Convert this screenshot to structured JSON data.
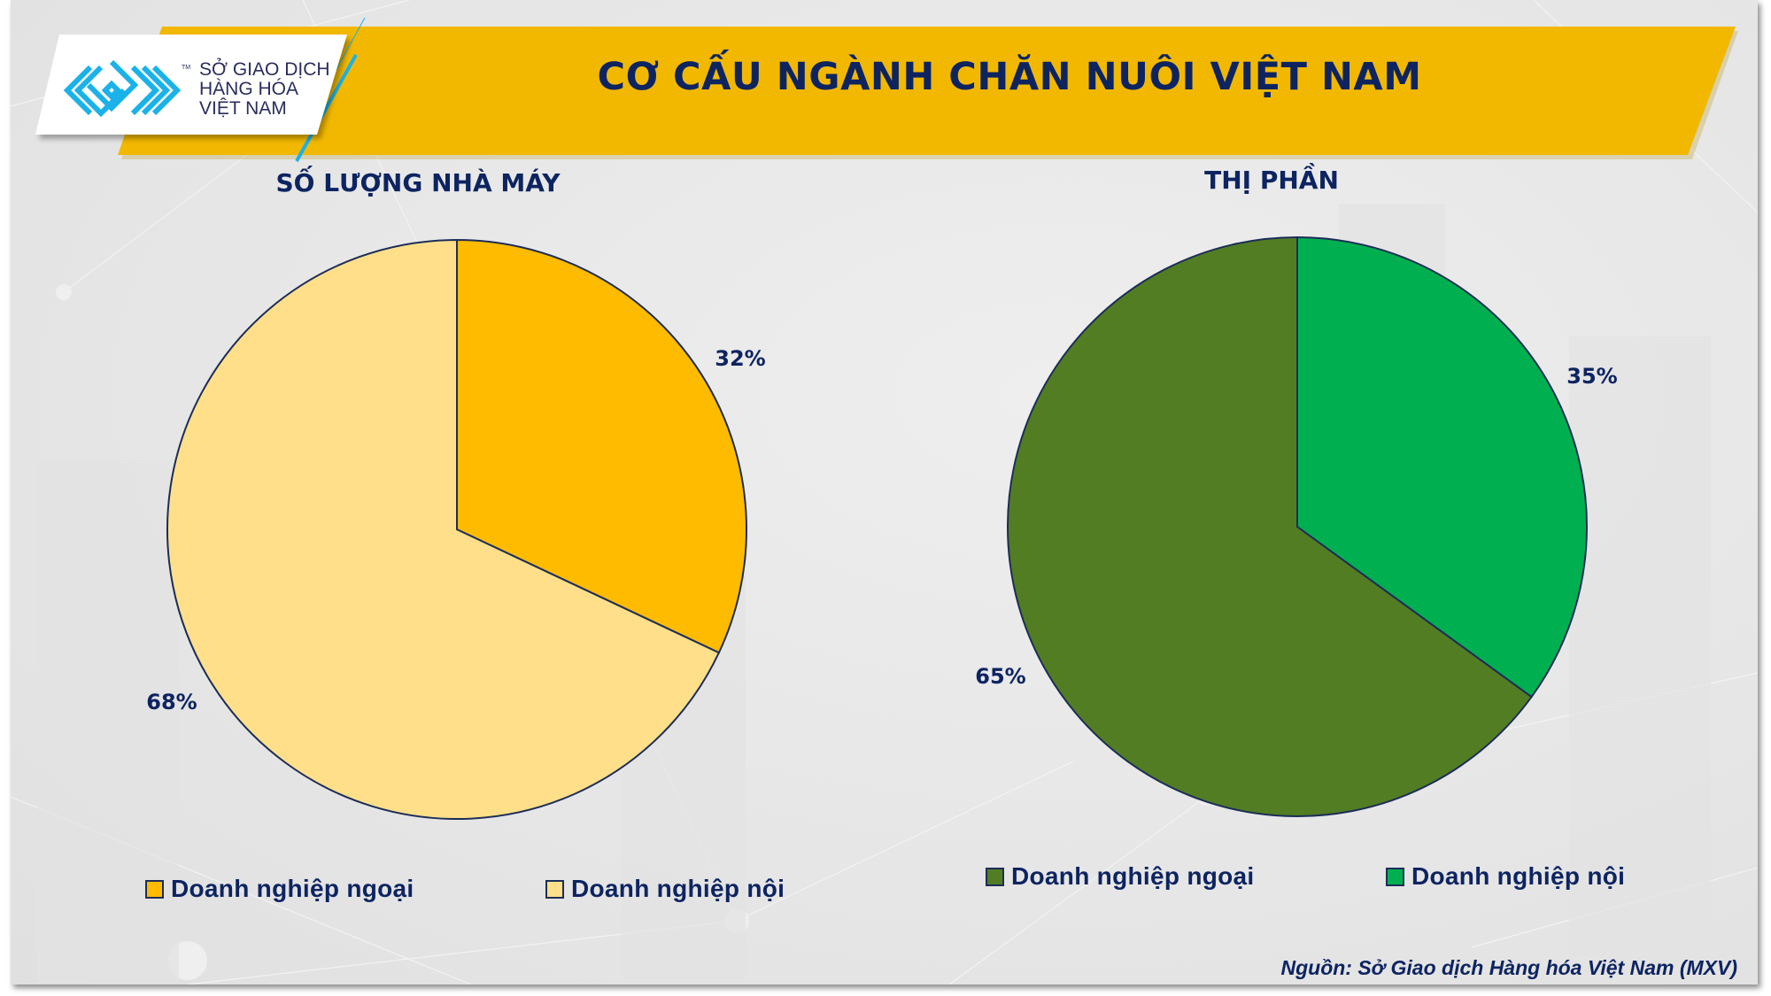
{
  "header": {
    "title": "CƠ CẤU NGÀNH CHĂN NUÔI VIỆT NAM",
    "logo": {
      "lines": [
        "SỞ GIAO DỊCH",
        "HÀNG HÓA",
        "VIỆT NAM"
      ],
      "tm": "TM",
      "icon": "mxv-logo-icon"
    }
  },
  "colors": {
    "banner": "#f2b800",
    "text": "#0d2461",
    "logo_blue": "#1ab2e8",
    "pie_border": "#1c2d57"
  },
  "source": "Nguồn: Sở Giao dịch Hàng hóa Việt Nam (MXV)",
  "chart_data": [
    {
      "type": "pie",
      "title": "SỐ LƯỢNG NHÀ MÁY",
      "categories": [
        "Doanh nghiệp ngoại",
        "Doanh nghiệp nội"
      ],
      "values": [
        32,
        68
      ],
      "labels": [
        "32%",
        "68%"
      ],
      "colors": [
        "#ffbb00",
        "#ffdf8a"
      ],
      "start_angle": "12 o'clock, clockwise",
      "legend_position": "bottom"
    },
    {
      "type": "pie",
      "title": "THỊ PHẦN",
      "categories": [
        "Doanh nghiệp ngoại",
        "Doanh nghiệp nội"
      ],
      "values": [
        65,
        35
      ],
      "labels": [
        "65%",
        "35%"
      ],
      "colors": [
        "#527d23",
        "#00b050"
      ],
      "start_angle": "12 o'clock, clockwise (nội first)",
      "legend_position": "bottom"
    }
  ]
}
